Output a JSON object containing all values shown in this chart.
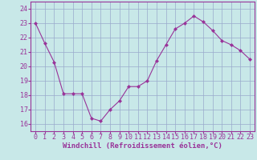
{
  "hours": [
    0,
    1,
    2,
    3,
    4,
    5,
    6,
    7,
    8,
    9,
    10,
    11,
    12,
    13,
    14,
    15,
    16,
    17,
    18,
    19,
    20,
    21,
    22,
    23
  ],
  "values": [
    23.0,
    21.6,
    20.3,
    18.1,
    18.1,
    18.1,
    16.4,
    16.2,
    17.0,
    17.6,
    18.6,
    18.6,
    19.0,
    20.4,
    21.5,
    22.6,
    23.0,
    23.5,
    23.1,
    22.5,
    21.8,
    21.5,
    21.1,
    20.5
  ],
  "line_color": "#993399",
  "marker": "D",
  "marker_size": 2.0,
  "bg_color": "#c8e8e8",
  "grid_color": "#99aacc",
  "xlabel": "Windchill (Refroidissement éolien,°C)",
  "ylim": [
    15.5,
    24.5
  ],
  "yticks": [
    16,
    17,
    18,
    19,
    20,
    21,
    22,
    23,
    24
  ],
  "xticks": [
    0,
    1,
    2,
    3,
    4,
    5,
    6,
    7,
    8,
    9,
    10,
    11,
    12,
    13,
    14,
    15,
    16,
    17,
    18,
    19,
    20,
    21,
    22,
    23
  ],
  "tick_color": "#993399",
  "label_color": "#993399",
  "spine_color": "#993399",
  "tick_label_fontsize": 6.0,
  "xlabel_fontsize": 6.5
}
